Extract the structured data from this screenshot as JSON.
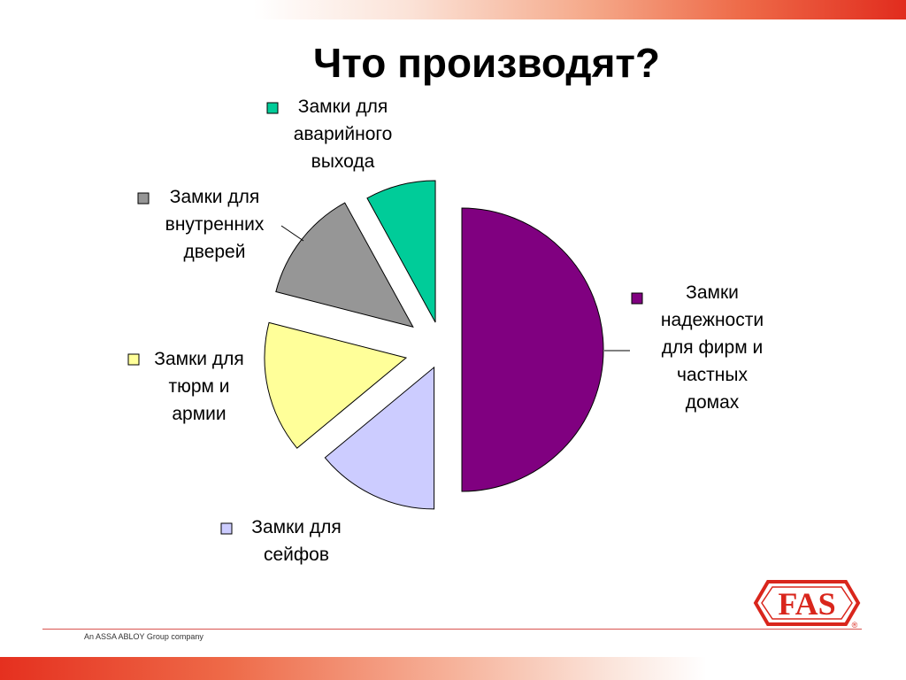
{
  "title": "Что производят?",
  "footer": {
    "text": "An ASSA ABLOY Group company"
  },
  "logo": {
    "text": "FAS",
    "registered": "®"
  },
  "chart_data": {
    "type": "pie",
    "title": "",
    "legend": "labels next to slices with color markers",
    "slices": [
      {
        "label": "Замки\nнадежности\nдля фирм и\nчастных\nдомах",
        "value": 50,
        "color": "#800080"
      },
      {
        "label": "Замки для\nсейфов",
        "value": 14,
        "color": "#ccccff"
      },
      {
        "label": "Замки для\nтюрм и\nармии",
        "value": 15,
        "color": "#ffff99"
      },
      {
        "label": "Замки для\nвнутренних\nдверей",
        "value": 13,
        "color": "#969696"
      },
      {
        "label": "Замки для\nаварийного\nвыхода",
        "value": 8,
        "color": "#00cc99"
      }
    ]
  }
}
